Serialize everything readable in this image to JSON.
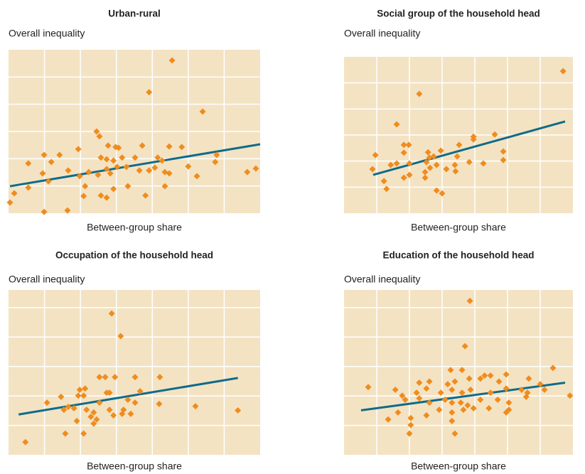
{
  "chart_data": [
    {
      "type": "scatter",
      "title": "Urban-rural",
      "ylabel": "Overall inequality",
      "xlabel": "Between-group share",
      "color": "#f08c1e",
      "grid": true,
      "xlim": [
        0,
        7
      ],
      "ylim": [
        0,
        6
      ],
      "xticks": [
        1,
        2,
        3,
        4,
        5,
        6
      ],
      "yticks": [
        1,
        2,
        3,
        4,
        5
      ],
      "x": [
        4.55,
        3.91,
        5.4,
        2.45,
        2.53,
        2.77,
        2.98,
        3.06,
        3.72,
        4.47,
        4.82,
        1.94,
        0.99,
        1.42,
        0.55,
        1.19,
        2.57,
        2.73,
        2.92,
        3.16,
        3.52,
        4.15,
        4.27,
        5.79,
        5.75,
        5.0,
        0.95,
        1.66,
        1.98,
        2.23,
        2.49,
        2.73,
        2.83,
        3.02,
        3.28,
        3.64,
        3.91,
        4.07,
        4.35,
        4.47,
        5.24,
        6.64,
        6.88,
        0.16,
        0.55,
        1.11,
        2.13,
        2.09,
        2.57,
        2.73,
        2.92,
        3.32,
        3.81,
        4.35,
        0.04,
        0.99,
        1.64
      ],
      "values": [
        5.61,
        4.44,
        3.73,
        3.0,
        2.82,
        2.48,
        2.43,
        2.4,
        2.48,
        2.45,
        2.43,
        2.35,
        2.14,
        2.14,
        1.83,
        1.88,
        2.04,
        1.98,
        1.93,
        2.04,
        2.04,
        2.04,
        1.93,
        2.14,
        1.88,
        1.72,
        1.46,
        1.57,
        1.36,
        1.51,
        1.41,
        1.62,
        1.46,
        1.7,
        1.7,
        1.57,
        1.57,
        1.67,
        1.51,
        1.46,
        1.36,
        1.51,
        1.64,
        0.73,
        0.94,
        1.17,
        0.99,
        0.63,
        0.65,
        0.57,
        0.89,
        0.99,
        0.65,
        0.99,
        0.39,
        0.05,
        0.1
      ],
      "trend": {
        "color": "#0f6b8a",
        "x": [
          0.04,
          7
        ],
        "values": [
          0.99,
          2.53
        ]
      }
    },
    {
      "type": "scatter",
      "title": "Social group of the household head",
      "ylabel": "Overall inequality",
      "xlabel": "Between-group share",
      "color": "#f08c1e",
      "grid": true,
      "xlim": [
        0,
        7
      ],
      "ylim": [
        0,
        6
      ],
      "xticks": [
        1,
        2,
        3,
        4,
        5,
        6
      ],
      "yticks": [
        1,
        2,
        3,
        4,
        5
      ],
      "x": [
        6.7,
        2.3,
        1.61,
        1.83,
        1.98,
        1.83,
        0.96,
        2.57,
        2.74,
        2.96,
        3.52,
        3.96,
        3.96,
        4.61,
        4.87,
        4.87,
        3.46,
        0.87,
        1.43,
        1.61,
        2.0,
        2.52,
        2.61,
        2.83,
        3.39,
        3.83,
        4.26,
        2.48,
        2.63,
        1.83,
        2.0,
        3.13,
        3.41,
        1.22,
        1.3,
        2.48,
        2.83,
        3.0
      ],
      "values": [
        5.45,
        4.58,
        3.41,
        2.62,
        2.62,
        2.32,
        2.23,
        2.34,
        2.18,
        2.4,
        2.62,
        2.94,
        2.83,
        3.02,
        2.37,
        2.04,
        2.18,
        1.69,
        1.85,
        1.91,
        1.91,
        1.96,
        2.13,
        1.85,
        1.85,
        1.96,
        1.91,
        1.58,
        1.74,
        1.36,
        1.47,
        1.69,
        1.61,
        1.23,
        0.93,
        1.36,
        0.87,
        0.76
      ],
      "trend": {
        "color": "#0f6b8a",
        "x": [
          0.89,
          6.76
        ],
        "values": [
          1.47,
          3.52
        ]
      }
    },
    {
      "type": "scatter",
      "title": "Occupation of the household head",
      "ylabel": "Overall inequality",
      "xlabel": "Between-group share",
      "color": "#f08c1e",
      "grid": true,
      "xlim": [
        0,
        7
      ],
      "ylim": [
        0,
        5.6
      ],
      "xticks": [
        1,
        2,
        3,
        4,
        5,
        6
      ],
      "yticks": [
        1,
        2,
        3,
        4,
        5
      ],
      "x": [
        2.87,
        3.12,
        2.53,
        2.69,
        2.96,
        3.52,
        4.21,
        1.98,
        2.13,
        2.73,
        2.81,
        3.66,
        1.46,
        1.94,
        2.09,
        1.07,
        2.53,
        3.32,
        3.52,
        1.66,
        1.54,
        1.82,
        2.17,
        2.81,
        3.2,
        2.37,
        2.29,
        2.45,
        2.92,
        3.16,
        3.4,
        4.19,
        5.2,
        6.38,
        1.9,
        2.37,
        1.58,
        2.09,
        0.47
      ],
      "values": [
        4.8,
        4.03,
        2.64,
        2.64,
        2.64,
        2.64,
        2.64,
        2.21,
        2.25,
        2.11,
        2.11,
        2.16,
        1.97,
        2.01,
        2.01,
        1.77,
        1.77,
        1.87,
        1.77,
        1.63,
        1.53,
        1.58,
        1.53,
        1.53,
        1.53,
        1.44,
        1.29,
        1.2,
        1.34,
        1.39,
        1.39,
        1.73,
        1.65,
        1.51,
        1.15,
        1.06,
        0.72,
        0.72,
        0.43
      ],
      "trend": {
        "color": "#0f6b8a",
        "x": [
          0.28,
          6.38
        ],
        "values": [
          1.37,
          2.61
        ]
      }
    },
    {
      "type": "scatter",
      "title": "Education of the household head",
      "ylabel": "Overall inequality",
      "xlabel": "Between-group share",
      "color": "#f08c1e",
      "grid": true,
      "xlim": [
        0,
        7
      ],
      "ylim": [
        0,
        5.6
      ],
      "xticks": [
        1,
        2,
        3,
        4,
        5,
        6
      ],
      "yticks": [
        1,
        2,
        3,
        4,
        5
      ],
      "x": [
        3.85,
        3.7,
        3.26,
        3.61,
        4.3,
        4.48,
        4.96,
        5.65,
        6.39,
        0.74,
        1.57,
        2.3,
        2.61,
        3.17,
        3.39,
        3.83,
        4.17,
        4.74,
        6.0,
        6.13,
        6.91,
        1.78,
        2.22,
        2.52,
        2.96,
        3.3,
        3.61,
        3.87,
        4.48,
        4.96,
        5.43,
        5.61,
        1.87,
        2.3,
        2.61,
        3.09,
        3.3,
        3.57,
        3.78,
        4.17,
        4.7,
        5.04,
        5.57,
        1.65,
        1.35,
        2.04,
        2.52,
        2.91,
        3.3,
        3.65,
        3.96,
        4.43,
        4.96,
        5.04,
        2.04,
        2.0,
        3.3,
        3.39
      ],
      "values": [
        5.23,
        3.69,
        2.88,
        2.88,
        2.69,
        2.69,
        2.73,
        2.59,
        2.95,
        2.3,
        2.21,
        2.45,
        2.49,
        2.4,
        2.49,
        2.59,
        2.59,
        2.49,
        2.4,
        2.21,
        2.01,
        2.01,
        2.11,
        2.25,
        2.11,
        2.21,
        2.11,
        2.21,
        2.11,
        2.25,
        2.21,
        2.11,
        1.87,
        1.92,
        1.77,
        1.87,
        1.77,
        1.77,
        1.68,
        1.87,
        1.87,
        1.77,
        1.97,
        1.44,
        1.2,
        1.25,
        1.34,
        1.53,
        1.44,
        1.53,
        1.58,
        1.58,
        1.44,
        1.53,
        1.01,
        0.72,
        1.15,
        0.72
      ],
      "trend": {
        "color": "#0f6b8a",
        "x": [
          0.52,
          6.76
        ],
        "values": [
          1.51,
          2.45
        ]
      }
    }
  ]
}
